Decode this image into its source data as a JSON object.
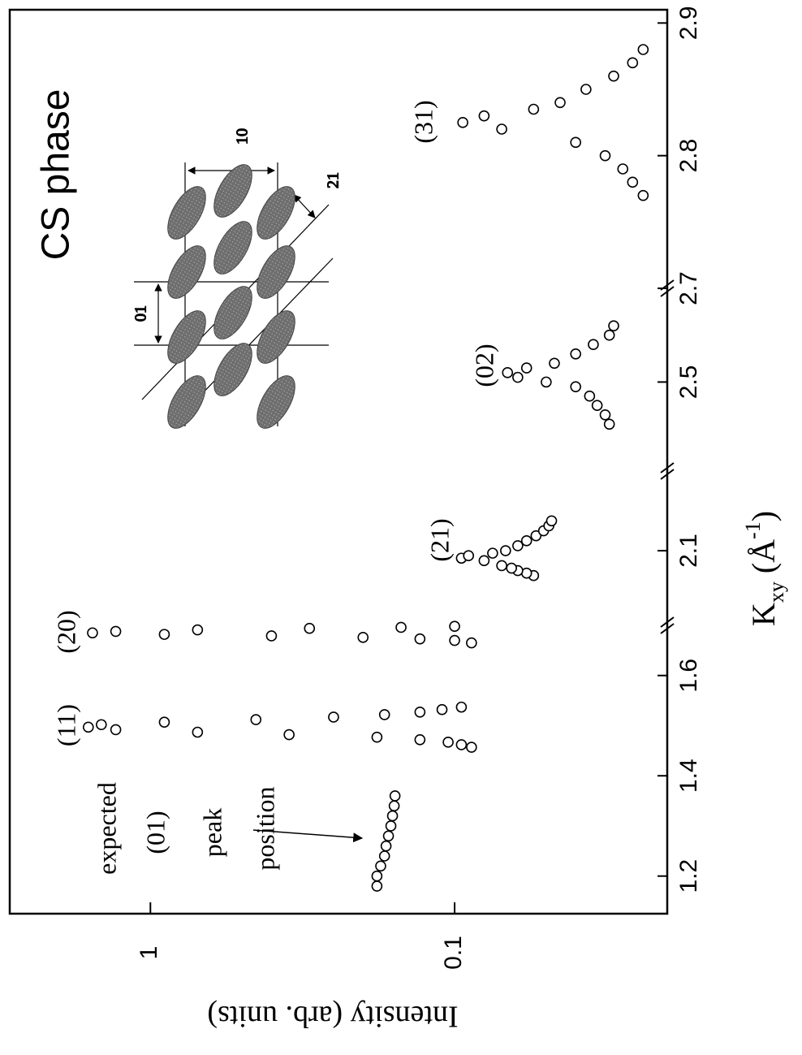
{
  "chart_data": {
    "type": "scatter",
    "log_y": true,
    "x_label": [
      "K",
      "xy",
      "(Å",
      "-1",
      ")"
    ],
    "y_label": "Intensity (arb. units)",
    "x_segments": [
      {
        "xlim": [
          1.125,
          1.7
        ],
        "xticks": [
          1.2,
          1.4,
          1.6
        ]
      },
      {
        "xlim": [
          1.95,
          2.26
        ],
        "xticks": [
          2.1
        ]
      },
      {
        "xlim": [
          2.31,
          2.7
        ],
        "xticks": [
          2.5,
          2.7
        ]
      },
      {
        "xlim": [
          2.7,
          2.91
        ],
        "xticks": [
          2.8,
          2.9
        ]
      }
    ],
    "ylim": [
      0.02,
      2.9
    ],
    "yticks": [
      0.1,
      1
    ],
    "series": [
      {
        "x": [
          1.18,
          1.2,
          1.22,
          1.24,
          1.26,
          1.28,
          1.3,
          1.32,
          1.34,
          1.36,
          1.457,
          1.462,
          1.467,
          1.472,
          1.477,
          1.482,
          1.487,
          1.492,
          1.497,
          1.502,
          1.507,
          1.512,
          1.517,
          1.522,
          1.527,
          1.532,
          1.537,
          1.665,
          1.67,
          1.673,
          1.676,
          1.679,
          1.682,
          1.685,
          1.688,
          1.691,
          1.694,
          1.696,
          1.698,
          2.05,
          2.055,
          2.06,
          2.065,
          2.07,
          2.08,
          2.085,
          2.09,
          2.095,
          2.1,
          2.11,
          2.12,
          2.13,
          2.14,
          2.15,
          2.16,
          2.41,
          2.43,
          2.45,
          2.47,
          2.49,
          2.5,
          2.51,
          2.52,
          2.53,
          2.54,
          2.56,
          2.58,
          2.6,
          2.62,
          2.77,
          2.78,
          2.79,
          2.8,
          2.81,
          2.82,
          2.825,
          2.83,
          2.835,
          2.84,
          2.85,
          2.86,
          2.87,
          2.88
        ],
        "values": [
          0.18,
          0.18,
          0.175,
          0.17,
          0.168,
          0.165,
          0.162,
          0.16,
          0.158,
          0.157,
          0.088,
          0.095,
          0.105,
          0.13,
          0.18,
          0.35,
          0.7,
          1.3,
          1.6,
          1.45,
          0.9,
          0.45,
          0.25,
          0.17,
          0.13,
          0.11,
          0.095,
          0.088,
          0.1,
          0.13,
          0.2,
          0.4,
          0.9,
          1.55,
          1.3,
          0.7,
          0.3,
          0.15,
          0.1,
          0.055,
          0.058,
          0.062,
          0.065,
          0.07,
          0.08,
          0.095,
          0.09,
          0.075,
          0.068,
          0.062,
          0.058,
          0.054,
          0.051,
          0.049,
          0.048,
          0.031,
          0.032,
          0.034,
          0.036,
          0.04,
          0.05,
          0.062,
          0.067,
          0.058,
          0.047,
          0.04,
          0.035,
          0.031,
          0.03,
          0.024,
          0.026,
          0.028,
          0.032,
          0.04,
          0.07,
          0.094,
          0.08,
          0.055,
          0.045,
          0.037,
          0.03,
          0.026,
          0.024
        ]
      }
    ],
    "annotations": {
      "expected": "expected",
      "p01": "(01)",
      "peak": "peak",
      "position": "position",
      "p11": "(11)",
      "p20": "(20)",
      "p21": "(21)",
      "p02": "(02)",
      "p31": "(31)",
      "phase": "CS phase"
    },
    "inset_labels": {
      "d10": "10",
      "d01": "01",
      "d21": "21"
    }
  }
}
